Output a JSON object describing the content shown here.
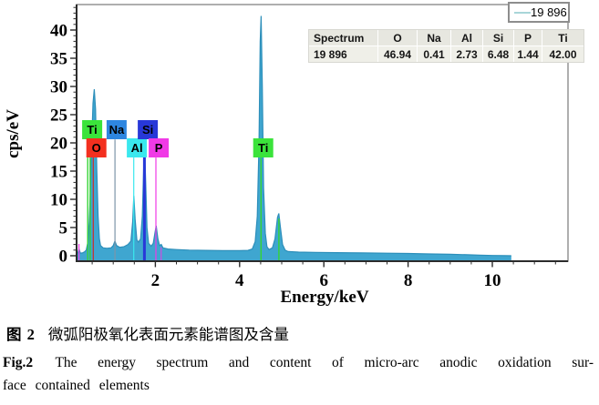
{
  "legend": {
    "label": "19 896",
    "line_color": "#a8d6d8"
  },
  "table": {
    "headers": [
      "Spectrum",
      "O",
      "Na",
      "Al",
      "Si",
      "P",
      "Ti"
    ],
    "rows": [
      [
        "19 896",
        "46.94",
        "0.41",
        "2.73",
        "6.48",
        "1.44",
        "42.00"
      ]
    ]
  },
  "caption": {
    "zh_label": "图 2",
    "zh_text": "微弧阳极氧化表面元素能谱图及含量",
    "en_label": "Fig.2",
    "en_line1": "The energy spectrum and content of micro-arc anodic oxidation sur-",
    "en_line2": "face contained elements"
  },
  "chart_data": {
    "type": "area",
    "title": "",
    "xlabel": "Energy/keV",
    "ylabel": "cps/eV",
    "xlim": [
      0.13,
      11.8
    ],
    "ylim": [
      -1,
      44.5
    ],
    "x_major_ticks": [
      2,
      4,
      6,
      8,
      10
    ],
    "x_minor_tick_step": 0.5,
    "y_major_ticks": [
      0,
      5,
      10,
      15,
      20,
      25,
      30,
      35,
      40
    ],
    "y_minor_tick_step": 1,
    "grid": false,
    "legend_position": "top-right",
    "series_name": "19 896",
    "fill_color": "#3fa6d0",
    "line_color": "#2d8fba",
    "frame_color": "#9b9b9b",
    "axis_color": "#2b2b2b",
    "spectrum": [
      [
        0.13,
        0.3
      ],
      [
        0.16,
        0.5
      ],
      [
        0.186,
        1.2
      ],
      [
        0.22,
        0.45
      ],
      [
        0.27,
        0.5
      ],
      [
        0.32,
        0.7
      ],
      [
        0.36,
        1.0
      ],
      [
        0.4,
        2.5
      ],
      [
        0.43,
        6
      ],
      [
        0.46,
        12
      ],
      [
        0.49,
        20
      ],
      [
        0.52,
        27
      ],
      [
        0.55,
        29.5
      ],
      [
        0.58,
        26
      ],
      [
        0.61,
        15
      ],
      [
        0.64,
        7
      ],
      [
        0.67,
        3
      ],
      [
        0.7,
        1.8
      ],
      [
        0.76,
        1.4
      ],
      [
        0.85,
        1.3
      ],
      [
        0.95,
        1.4
      ],
      [
        1.0,
        1.8
      ],
      [
        1.04,
        2.6
      ],
      [
        1.08,
        1.8
      ],
      [
        1.15,
        1.5
      ],
      [
        1.25,
        1.6
      ],
      [
        1.35,
        2.0
      ],
      [
        1.42,
        2.6
      ],
      [
        1.46,
        6
      ],
      [
        1.49,
        10.6
      ],
      [
        1.52,
        6.5
      ],
      [
        1.56,
        2.8
      ],
      [
        1.6,
        2.4
      ],
      [
        1.65,
        3
      ],
      [
        1.69,
        7
      ],
      [
        1.72,
        15
      ],
      [
        1.74,
        20
      ],
      [
        1.77,
        13
      ],
      [
        1.8,
        5
      ],
      [
        1.84,
        2.2
      ],
      [
        1.9,
        1.7
      ],
      [
        1.95,
        2.2
      ],
      [
        1.99,
        4
      ],
      [
        2.02,
        5.3
      ],
      [
        2.06,
        3
      ],
      [
        2.1,
        1.8
      ],
      [
        2.14,
        2.0
      ],
      [
        2.18,
        1.4
      ],
      [
        2.3,
        1.2
      ],
      [
        2.5,
        1.1
      ],
      [
        2.8,
        1.0
      ],
      [
        3.2,
        0.95
      ],
      [
        3.6,
        0.9
      ],
      [
        4.0,
        0.9
      ],
      [
        4.2,
        0.95
      ],
      [
        4.3,
        1.2
      ],
      [
        4.37,
        2.5
      ],
      [
        4.42,
        7
      ],
      [
        4.46,
        20
      ],
      [
        4.49,
        38
      ],
      [
        4.51,
        42.5
      ],
      [
        4.54,
        30
      ],
      [
        4.57,
        12
      ],
      [
        4.61,
        4
      ],
      [
        4.65,
        1.6
      ],
      [
        4.7,
        1.1
      ],
      [
        4.78,
        1.4
      ],
      [
        4.84,
        3
      ],
      [
        4.9,
        6.8
      ],
      [
        4.93,
        7.5
      ],
      [
        4.97,
        5
      ],
      [
        5.02,
        2
      ],
      [
        5.08,
        1.0
      ],
      [
        5.15,
        0.75
      ],
      [
        5.4,
        0.65
      ],
      [
        5.8,
        0.6
      ],
      [
        6.3,
        0.55
      ],
      [
        6.9,
        0.5
      ],
      [
        7.5,
        0.45
      ],
      [
        8.0,
        0.4
      ],
      [
        8.5,
        0.33
      ],
      [
        9.0,
        0.25
      ],
      [
        9.4,
        0.17
      ],
      [
        9.7,
        0.1
      ],
      [
        10.0,
        0.05
      ],
      [
        10.3,
        0.02
      ],
      [
        10.45,
        0
      ]
    ],
    "element_labels": [
      {
        "element": "Ti",
        "xray_line": "La",
        "energy_keV": 0.452,
        "label_x_keV": 0.5,
        "row": "upper",
        "color": "#3be33b"
      },
      {
        "element": "O",
        "xray_line": "Ka",
        "energy_keV": 0.525,
        "label_x_keV": 0.6,
        "row": "lower",
        "color": "#f3301f"
      },
      {
        "element": "Na",
        "xray_line": "Ka",
        "energy_keV": 1.041,
        "label_x_keV": 1.08,
        "row": "upper",
        "color": "#2e86e0"
      },
      {
        "element": "Al",
        "xray_line": "Ka",
        "energy_keV": 1.487,
        "label_x_keV": 1.56,
        "row": "lower",
        "color": "#3ae8ee"
      },
      {
        "element": "Si",
        "xray_line": "Ka",
        "energy_keV": 1.74,
        "label_x_keV": 1.82,
        "row": "upper",
        "color": "#2838d8"
      },
      {
        "element": "P",
        "xray_line": "Ka",
        "energy_keV": 2.013,
        "label_x_keV": 2.08,
        "row": "lower",
        "color": "#f03ae6"
      },
      {
        "element": "Ti",
        "xray_line": "Ka",
        "energy_keV": 4.509,
        "label_x_keV": 4.56,
        "row": "lower",
        "color": "#3be33b"
      }
    ],
    "marker_lines": [
      {
        "element": "P",
        "energy_keV": 0.186,
        "color": "#f03ae6",
        "top_cps": 2.1,
        "width": 1.2
      },
      {
        "element": "Ti",
        "energy_keV": 0.395,
        "color": "#35d435",
        "top_cps": 17.4,
        "width": 1.4
      },
      {
        "element": "Ti",
        "energy_keV": 0.452,
        "color": "#35d435",
        "top_cps": 17.4,
        "width": 1.4
      },
      {
        "element": "O",
        "energy_keV": 0.525,
        "color": "#cc2f26",
        "top_cps": 17.4,
        "width": 1.2
      },
      {
        "element": "Na",
        "energy_keV": 1.041,
        "color": "#7d95a8",
        "top_cps": 20.6,
        "width": 1.2
      },
      {
        "element": "Al",
        "energy_keV": 1.487,
        "color": "#3ae8ee",
        "top_cps": 17.4,
        "width": 1.2
      },
      {
        "element": "Si",
        "energy_keV": 1.74,
        "color": "#2838d8",
        "top_cps": 20.6,
        "width": 3
      },
      {
        "element": "P",
        "energy_keV": 2.013,
        "color": "#f03ae6",
        "top_cps": 17.4,
        "width": 1.2
      },
      {
        "element": "P",
        "energy_keV": 2.139,
        "color": "#f03ae6",
        "top_cps": 1.5,
        "width": 1
      },
      {
        "element": "Ti",
        "energy_keV": 4.509,
        "color": "#35d435",
        "top_cps": 17.4,
        "width": 1.4
      },
      {
        "element": "Ti",
        "energy_keV": 4.932,
        "color": "#35d435",
        "top_cps": 6.6,
        "width": 1.4
      }
    ]
  }
}
